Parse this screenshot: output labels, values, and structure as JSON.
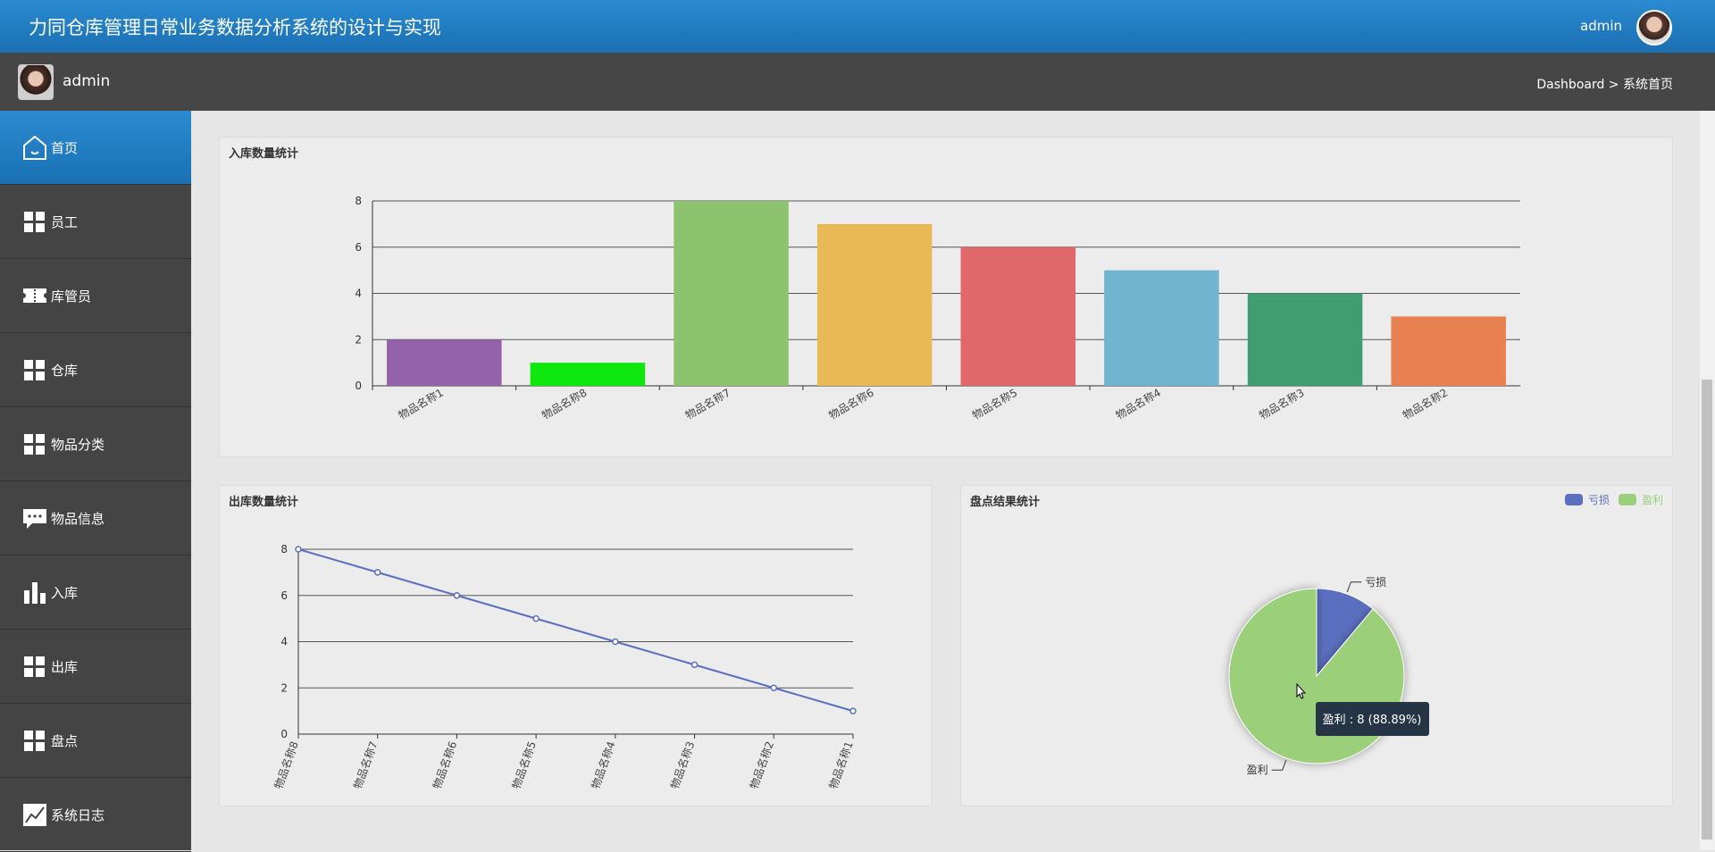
{
  "header": {
    "title": "力同仓库管理日常业务数据分析系统的设计与实现",
    "user": "admin"
  },
  "subheader": {
    "user": "admin",
    "breadcrumb": "Dashboard > 系统首页"
  },
  "sidebar": {
    "items": [
      "首页",
      "员工",
      "库管员",
      "仓库",
      "物品分类",
      "物品信息",
      "入库",
      "出库",
      "盘点",
      "系统日志"
    ],
    "active": 0
  },
  "chart_data": [
    {
      "type": "bar",
      "title": "入库数量统计",
      "categories": [
        "物品名称1",
        "物品名称8",
        "物品名称7",
        "物品名称6",
        "物品名称5",
        "物品名称4",
        "物品名称3",
        "物品名称2"
      ],
      "values": [
        2,
        1,
        8,
        7,
        6,
        5,
        4,
        3
      ],
      "colors": [
        "#9462ab",
        "#0ee80e",
        "#8dc26f",
        "#e8b955",
        "#e0686a",
        "#70b4d0",
        "#3f9d70",
        "#e98051"
      ],
      "ylim": [
        0,
        8
      ],
      "yticks": [
        0,
        2,
        4,
        6,
        8
      ],
      "grid": true
    },
    {
      "type": "line",
      "title": "出库数量统计",
      "categories": [
        "物品名称8",
        "物品名称7",
        "物品名称6",
        "物品名称5",
        "物品名称4",
        "物品名称3",
        "物品名称2",
        "物品名称1"
      ],
      "values": [
        8,
        7,
        6,
        5,
        4,
        3,
        2,
        1
      ],
      "color": "#5b6fc0",
      "ylim": [
        0,
        8
      ],
      "yticks": [
        0,
        2,
        4,
        6,
        8
      ],
      "grid": true
    },
    {
      "type": "pie",
      "title": "盘点结果统计",
      "categories": [
        "亏损",
        "盈利"
      ],
      "values": [
        1,
        8
      ],
      "colors": [
        "#5b6fc0",
        "#9bcf79"
      ],
      "legend": "top-right",
      "tooltip": "盈利 : 8 (88.89%)"
    }
  ]
}
